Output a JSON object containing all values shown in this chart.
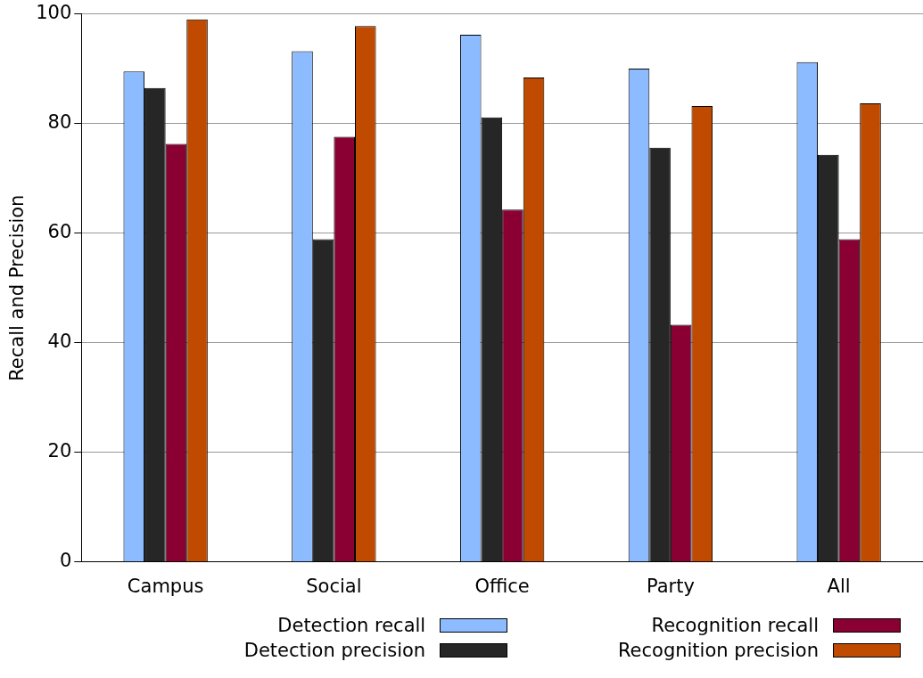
{
  "chart_data": {
    "type": "bar",
    "ylabel": "Recall and Precision",
    "categories": [
      "Campus",
      "Social",
      "Office",
      "Party",
      "All"
    ],
    "series": [
      {
        "name": "Detection recall",
        "color": "#8cbcff",
        "values": [
          89.5,
          93.2,
          96.2,
          90.0,
          91.2
        ]
      },
      {
        "name": "Detection precision",
        "color": "#262626",
        "values": [
          86.5,
          58.9,
          81.1,
          75.6,
          74.3
        ]
      },
      {
        "name": "Recognition recall",
        "color": "#8a0033",
        "values": [
          76.3,
          77.6,
          64.3,
          43.3,
          58.9
        ]
      },
      {
        "name": "Recognition precision",
        "color": "#bf4a00",
        "values": [
          99.0,
          97.8,
          88.4,
          83.2,
          83.7
        ]
      }
    ],
    "ylim": [
      0,
      100
    ],
    "yticks": [
      0,
      20,
      40,
      60,
      80,
      100
    ],
    "grid": "y",
    "legend": "bottom"
  }
}
